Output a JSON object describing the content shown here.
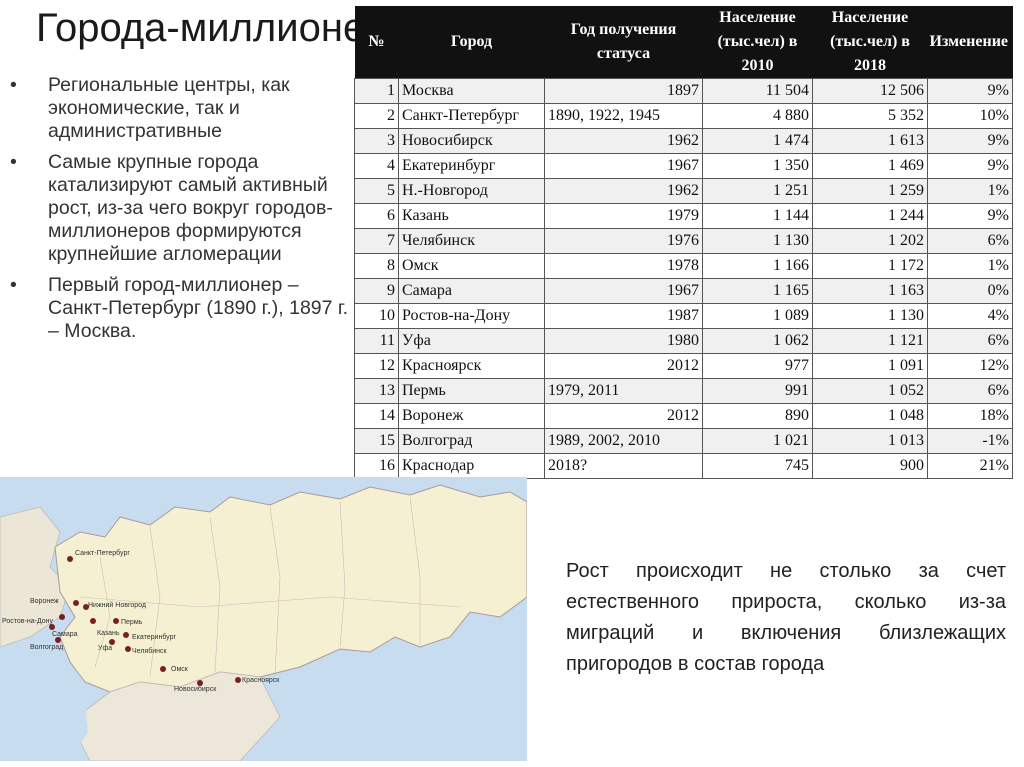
{
  "title": "Города-миллионеры",
  "bullets": [
    "Региональные центры, как экономические, так и административные",
    "Самые крупные города катализируют самый активный рост, из-за чего вокруг городов-миллионеров формируются крупнейшие агломерации",
    "Первый город-миллионер – Санкт-Петербург (1890 г.), 1897 г. – Москва."
  ],
  "table": {
    "headers": [
      "№",
      "Город",
      "Год получения статуса",
      "Население (тыс.чел) в 2010",
      "Население (тыс.чел) в 2018",
      "Изменение"
    ],
    "rows": [
      [
        "1",
        "Москва",
        "1897",
        "11 504",
        "12 506",
        "9%"
      ],
      [
        "2",
        "Санкт-Петербург",
        "1890, 1922, 1945",
        "4 880",
        "5 352",
        "10%"
      ],
      [
        "3",
        "Новосибирск",
        "1962",
        "1 474",
        "1 613",
        "9%"
      ],
      [
        "4",
        "Екатеринбург",
        "1967",
        "1 350",
        "1 469",
        "9%"
      ],
      [
        "5",
        "Н.-Новгород",
        "1962",
        "1 251",
        "1 259",
        "1%"
      ],
      [
        "6",
        "Казань",
        "1979",
        "1 144",
        "1 244",
        "9%"
      ],
      [
        "7",
        "Челябинск",
        "1976",
        "1 130",
        "1 202",
        "6%"
      ],
      [
        "8",
        "Омск",
        "1978",
        "1 166",
        "1 172",
        "1%"
      ],
      [
        "9",
        "Самара",
        "1967",
        "1 165",
        "1 163",
        "0%"
      ],
      [
        "10",
        "Ростов-на-Дону",
        "1987",
        "1 089",
        "1 130",
        "4%"
      ],
      [
        "11",
        "Уфа",
        "1980",
        "1 062",
        "1 121",
        "6%"
      ],
      [
        "12",
        "Красноярск",
        "2012",
        "977",
        "1 091",
        "12%"
      ],
      [
        "13",
        "Пермь",
        "1979, 2011",
        "991",
        "1 052",
        "6%"
      ],
      [
        "14",
        "Воронеж",
        "2012",
        "890",
        "1 048",
        "18%"
      ],
      [
        "15",
        "Волгоград",
        "1989, 2002, 2010",
        "1 021",
        "1 013",
        "-1%"
      ],
      [
        "16",
        "Краснодар",
        "2018?",
        "745",
        "900",
        "21%"
      ]
    ]
  },
  "map": {
    "cities": [
      "Санкт-Петербург",
      "Нижний Новгород",
      "Воронеж",
      "Ростов-на-Дону",
      "Самара",
      "Волгоград",
      "Казань",
      "Уфа",
      "Пермь",
      "Екатеринбург",
      "Челябинск",
      "Омск",
      "Новосибирск",
      "Красноярск"
    ]
  },
  "note": "Рост происходит не столько за счет естественного прироста, сколько из-за миграций и включения близлежащих пригородов в состав города",
  "colors": {
    "header_bg": "#111111",
    "sea": "#c7dcef",
    "land": "#f6f0d2",
    "city_dot": "#7a1f1f"
  }
}
